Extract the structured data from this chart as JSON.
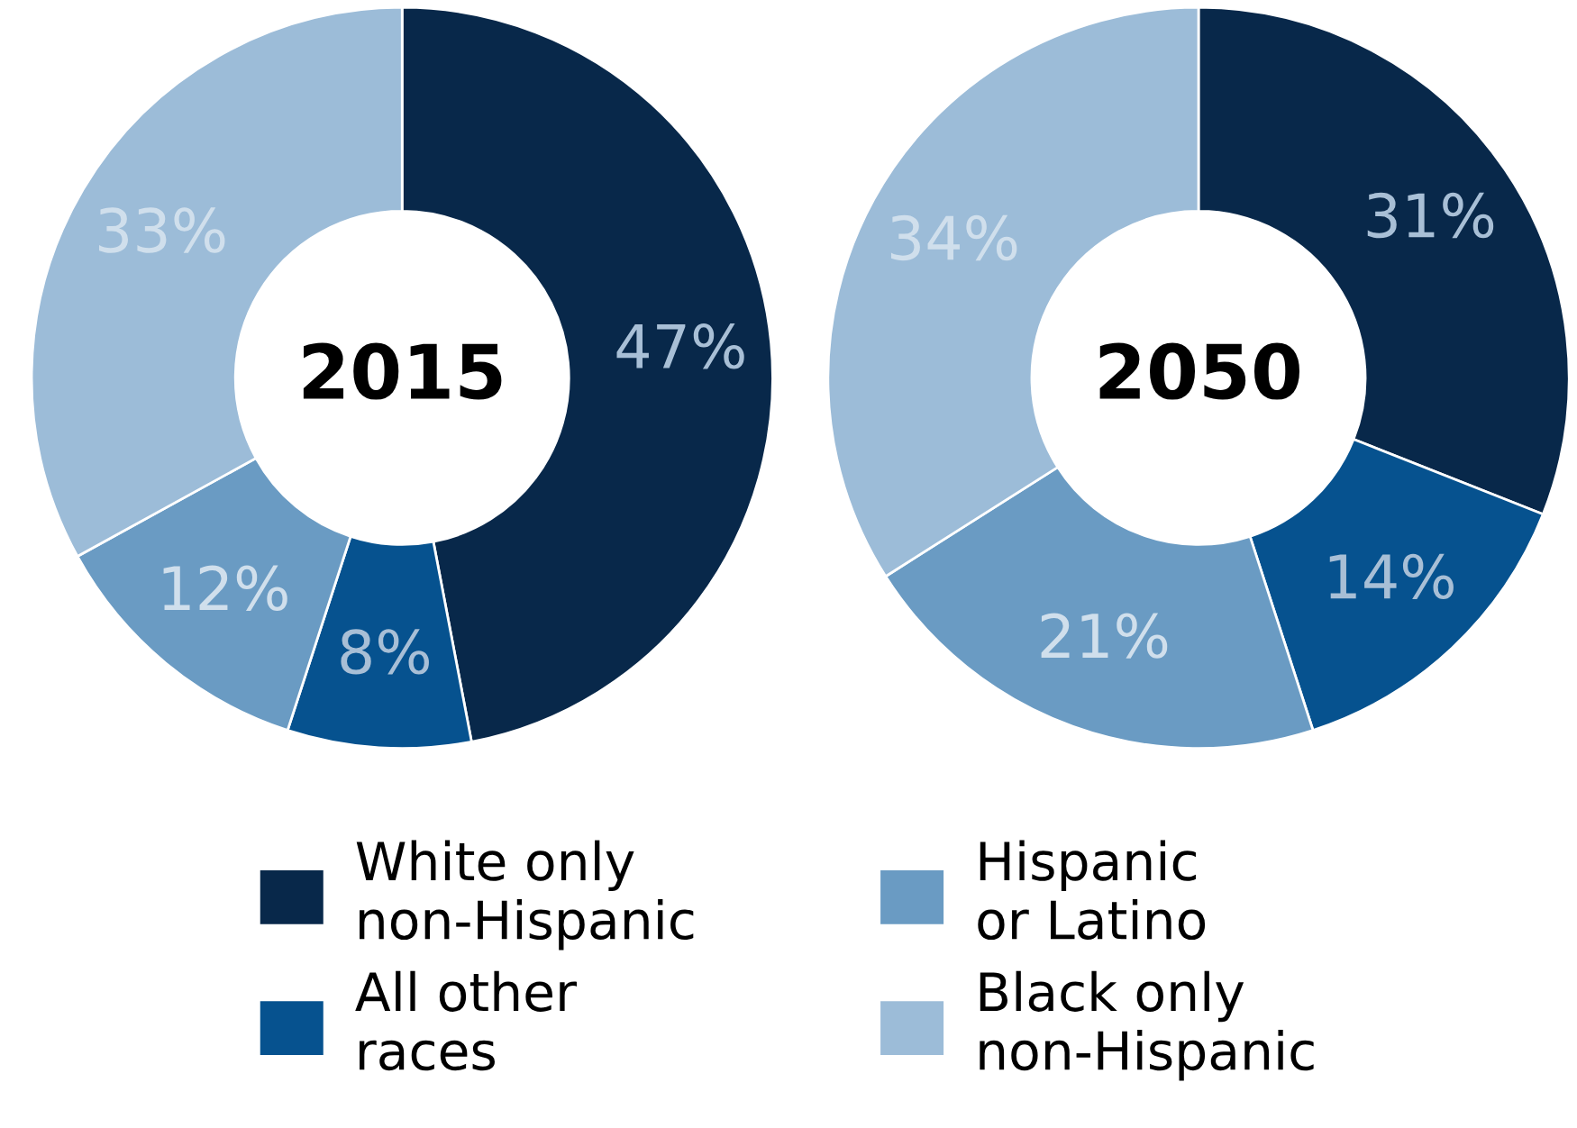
{
  "chart_data": [
    {
      "type": "donut",
      "title": "2015",
      "categories": [
        "White only non-Hispanic",
        "All other races",
        "Hispanic or Latino",
        "Black only non-Hispanic"
      ],
      "values": [
        47,
        8,
        12,
        33
      ],
      "value_labels": [
        "47%",
        "8%",
        "12%",
        "33%"
      ],
      "colors": [
        "#08284a",
        "#06528f",
        "#6a9bc3",
        "#9cbcd8"
      ],
      "legend": "bottom"
    },
    {
      "type": "donut",
      "title": "2050",
      "categories": [
        null,
        null,
        null,
        null
      ],
      "values": [
        31,
        14,
        21,
        34
      ],
      "value_labels": [
        "31%",
        "14%",
        "21%",
        "34%"
      ],
      "colors": [
        "#08284a",
        "#06528f",
        "#6a9bc3",
        "#9cbcd8"
      ],
      "legend": false
    }
  ]
}
